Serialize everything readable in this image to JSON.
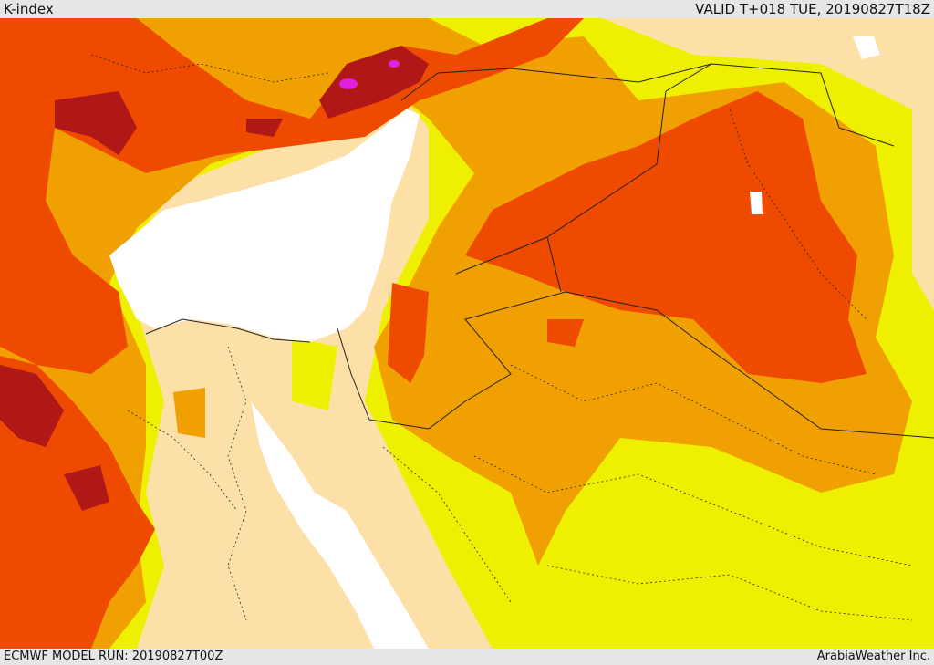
{
  "header": {
    "title": "K-index",
    "valid_time": "VALID T+018 TUE, 20190827T18Z"
  },
  "footer": {
    "model_run": "ECMWF MODEL RUN: 20190827T00Z",
    "credit": "ArabiaWeather Inc."
  },
  "colors": {
    "level_low": "#fde0a8",
    "level_1": "#eef000",
    "level_2": "#f0a000",
    "level_3": "#ee4a00",
    "level_4": "#b01818",
    "level_5": "#e020e0",
    "sea": "#ffffff",
    "border": "#222222"
  }
}
